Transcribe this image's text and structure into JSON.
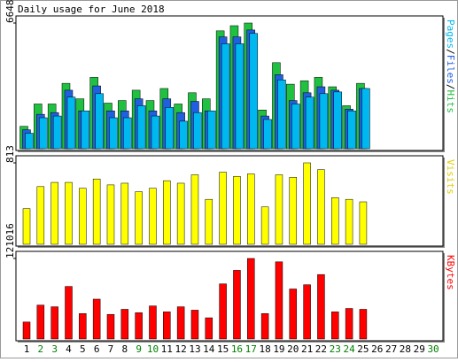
{
  "chart_data": [
    {
      "type": "bar",
      "title": "Daily usage for June 2018",
      "ylim": [
        0,
        6648
      ],
      "yticks": [
        6648
      ],
      "legend_separator": "/",
      "series": [
        {
          "name": "Hits",
          "color": "#20c040",
          "values": [
            1183,
            2366,
            2366,
            3458,
            2639,
            3776,
            2412,
            2548,
            3094,
            2548,
            3185,
            2366,
            2958,
            2639,
            6234,
            6507,
            6648,
            2048,
            4550,
            3413,
            3595,
            3776,
            3276,
            2275,
            3458,
            0,
            0,
            0,
            0,
            0
          ]
        },
        {
          "name": "Files",
          "color": "#2060e0",
          "values": [
            1001,
            1820,
            1911,
            3094,
            2002,
            3322,
            2002,
            2002,
            2639,
            2002,
            2639,
            1911,
            2503,
            2002,
            5915,
            5915,
            6279,
            1729,
            3913,
            2548,
            2958,
            3276,
            3094,
            2093,
            3185,
            0,
            0,
            0,
            0,
            0
          ]
        },
        {
          "name": "Pages",
          "color": "#00b8f0",
          "values": [
            819,
            1638,
            1729,
            2730,
            2002,
            2912,
            1638,
            1638,
            2275,
            1729,
            2184,
            1456,
            1911,
            2002,
            5551,
            5551,
            6097,
            1547,
            3640,
            2366,
            2730,
            2912,
            3003,
            2002,
            3185,
            0,
            0,
            0,
            0,
            0
          ]
        }
      ]
    },
    {
      "type": "bar",
      "ylim": [
        0,
        813
      ],
      "yticks": [
        813
      ],
      "series": [
        {
          "name": "Visits",
          "color": "#ffff00",
          "values": [
            356,
            576,
            618,
            618,
            559,
            652,
            593,
            610,
            525,
            559,
            635,
            610,
            694,
            449,
            720,
            678,
            703,
            373,
            694,
            669,
            813,
            745,
            466,
            449,
            424,
            0,
            0,
            0,
            0,
            0
          ]
        }
      ]
    },
    {
      "type": "bar",
      "ylim": [
        0,
        121016
      ],
      "yticks": [
        121016
      ],
      "categories": [
        "1",
        "2",
        "3",
        "4",
        "5",
        "6",
        "7",
        "8",
        "9",
        "10",
        "11",
        "12",
        "13",
        "14",
        "15",
        "16",
        "17",
        "18",
        "19",
        "20",
        "21",
        "22",
        "23",
        "24",
        "25",
        "26",
        "27",
        "28",
        "29",
        "30"
      ],
      "category_colors": [
        "#000000",
        "#008000",
        "#008000",
        "#000000",
        "#000000",
        "#000000",
        "#000000",
        "#000000",
        "#008000",
        "#008000",
        "#000000",
        "#000000",
        "#000000",
        "#000000",
        "#000000",
        "#008000",
        "#008000",
        "#000000",
        "#000000",
        "#000000",
        "#000000",
        "#000000",
        "#008000",
        "#008000",
        "#000000",
        "#000000",
        "#000000",
        "#000000",
        "#000000",
        "#008000"
      ],
      "series": [
        {
          "name": "KBytes",
          "color": "#ff0000",
          "values": [
            25480,
            50960,
            48412,
            78988,
            38220,
            59878,
            36946,
            44590,
            39494,
            49686,
            40768,
            48412,
            43316,
            31850,
            82810,
            103194,
            121016,
            38220,
            115934,
            75166,
            81536,
            96824,
            40768,
            45864,
            44590,
            0,
            0,
            0,
            0,
            0
          ]
        }
      ]
    }
  ]
}
